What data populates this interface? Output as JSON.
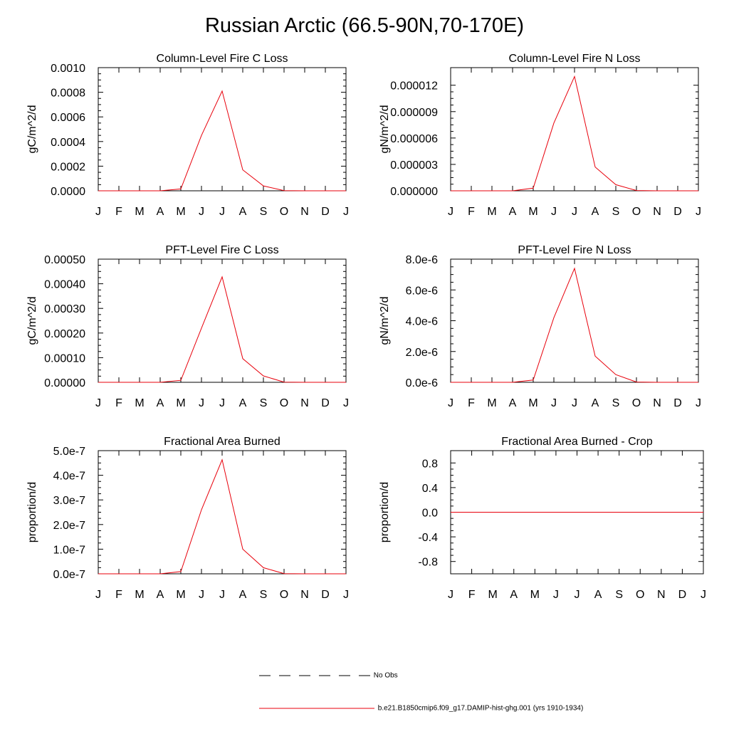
{
  "page": {
    "title": "Russian Arctic (66.5-90N,70-170E)"
  },
  "colors": {
    "series": "#e8000b",
    "axis": "#000000",
    "obs": "#000000"
  },
  "legend": {
    "obs_label": "No Obs",
    "model_label": "b.e21.B1850cmip6.f09_g17.DAMIP-hist-ghg.001 (yrs 1910-1934)"
  },
  "chart_data": [
    {
      "type": "line",
      "title": "Column-Level Fire C Loss",
      "ylabel": "gC/m^2/d",
      "categories": [
        "J",
        "F",
        "M",
        "A",
        "M",
        "J",
        "J",
        "A",
        "S",
        "O",
        "N",
        "D",
        "J"
      ],
      "ylim": [
        0,
        0.001
      ],
      "yticks": [
        "0.0000",
        "0.0002",
        "0.0004",
        "0.0006",
        "0.0008",
        "0.0010"
      ],
      "series": [
        {
          "values": [
            0,
            0,
            0,
            0,
            1.5e-05,
            0.00045,
            0.00081,
            0.00017,
            4e-05,
            2e-06,
            0,
            0,
            0
          ]
        }
      ]
    },
    {
      "type": "line",
      "title": "Column-Level Fire N Loss",
      "ylabel": "gN/m^2/d",
      "categories": [
        "J",
        "F",
        "M",
        "A",
        "M",
        "J",
        "J",
        "A",
        "S",
        "O",
        "N",
        "D",
        "J"
      ],
      "ylim": [
        0,
        1.4e-05
      ],
      "yticks": [
        "0.000000",
        "0.000003",
        "0.000006",
        "0.000009",
        "0.000012"
      ],
      "series": [
        {
          "values": [
            0,
            0,
            0,
            0,
            3e-07,
            7.7e-06,
            1.3e-05,
            2.7e-06,
            7e-07,
            3e-08,
            0,
            0,
            0
          ]
        }
      ]
    },
    {
      "type": "line",
      "title": "PFT-Level Fire C Loss",
      "ylabel": "gC/m^2/d",
      "categories": [
        "J",
        "F",
        "M",
        "A",
        "M",
        "J",
        "J",
        "A",
        "S",
        "O",
        "N",
        "D",
        "J"
      ],
      "ylim": [
        0,
        0.0005
      ],
      "yticks": [
        "0.00000",
        "0.00010",
        "0.00020",
        "0.00030",
        "0.00040",
        "0.00050"
      ],
      "series": [
        {
          "values": [
            0,
            0,
            0,
            0,
            8e-06,
            0.00022,
            0.000428,
            9.6e-05,
            2.6e-05,
            1e-06,
            0,
            0,
            0
          ]
        }
      ]
    },
    {
      "type": "line",
      "title": "PFT-Level Fire N Loss",
      "ylabel": "gN/m^2/d",
      "categories": [
        "J",
        "F",
        "M",
        "A",
        "M",
        "J",
        "J",
        "A",
        "S",
        "O",
        "N",
        "D",
        "J"
      ],
      "ylim": [
        0,
        8e-06
      ],
      "yticks": [
        "0.0e-6",
        "2.0e-6",
        "4.0e-6",
        "6.0e-6",
        "8.0e-6"
      ],
      "series": [
        {
          "values": [
            0,
            0,
            0,
            0,
            1.5e-07,
            4.2e-06,
            7.4e-06,
            1.7e-06,
            5e-07,
            2e-08,
            0,
            0,
            0
          ]
        }
      ]
    },
    {
      "type": "line",
      "title": "Fractional Area Burned",
      "ylabel": "proportion/d",
      "categories": [
        "J",
        "F",
        "M",
        "A",
        "M",
        "J",
        "J",
        "A",
        "S",
        "O",
        "N",
        "D",
        "J"
      ],
      "ylim": [
        0,
        5e-07
      ],
      "yticks": [
        "0.0e-7",
        "1.0e-7",
        "2.0e-7",
        "3.0e-7",
        "4.0e-7",
        "5.0e-7"
      ],
      "series": [
        {
          "values": [
            0,
            0,
            0,
            0,
            9e-09,
            2.6e-07,
            4.63e-07,
            1e-07,
            2.5e-08,
            1e-09,
            0,
            0,
            0
          ]
        }
      ]
    },
    {
      "type": "line",
      "title": "Fractional Area Burned - Crop",
      "ylabel": "proportion/d",
      "categories": [
        "J",
        "F",
        "M",
        "A",
        "M",
        "J",
        "J",
        "A",
        "S",
        "O",
        "N",
        "D",
        "J"
      ],
      "ylim": [
        -1,
        1
      ],
      "yticks": [
        "-0.8",
        "-0.4",
        "0.0",
        "0.4",
        "0.8"
      ],
      "ytick_values": [
        -0.8,
        -0.4,
        0,
        0.4,
        0.8
      ],
      "series": [
        {
          "values": [
            0,
            0,
            0,
            0,
            0,
            0,
            0,
            0,
            0,
            0,
            0,
            0,
            0
          ]
        }
      ]
    }
  ]
}
